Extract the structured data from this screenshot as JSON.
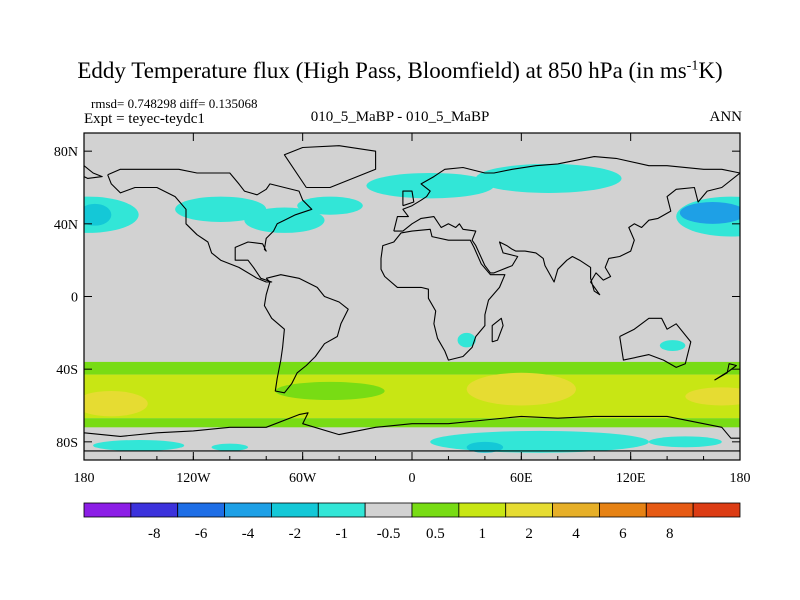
{
  "chart_data": {
    "type": "heatmap",
    "title": "Eddy Temperature flux (High Pass, Bloomfield) at 850 hPa (in ms",
    "title_superscript": "-1",
    "title_end": "K)",
    "stats": "rmsd= 0.748298 diff= 0.135068",
    "experiment": "Expt = teyec-teydc1",
    "case": "010_5_MaBP - 010_5_MaBP",
    "period": "ANN",
    "x_range": [
      -180,
      180
    ],
    "y_range": [
      -90,
      90
    ],
    "x_ticks": [
      {
        "value": -180,
        "label": "180"
      },
      {
        "value": -120,
        "label": "120W"
      },
      {
        "value": -60,
        "label": "60W"
      },
      {
        "value": 0,
        "label": "0"
      },
      {
        "value": 60,
        "label": "60E"
      },
      {
        "value": 120,
        "label": "120E"
      },
      {
        "value": 180,
        "label": "180"
      }
    ],
    "y_ticks": [
      {
        "value": 80,
        "label": "80N"
      },
      {
        "value": 40,
        "label": "40N"
      },
      {
        "value": 0,
        "label": "0"
      },
      {
        "value": -40,
        "label": "40S"
      },
      {
        "value": -80,
        "label": "80S"
      }
    ],
    "colorbar": {
      "colors": [
        "#8c1ee6",
        "#3c32dc",
        "#1e6ee6",
        "#1ea0e6",
        "#14c8d7",
        "#32e6d7",
        "#d2d2d2",
        "#78dc14",
        "#c8e614",
        "#e6dc32",
        "#e6af28",
        "#e68214",
        "#e65a14",
        "#dc3c14"
      ],
      "labels": [
        "-8",
        "-6",
        "-4",
        "-2",
        "-1",
        "-0.5",
        "0.5",
        "1",
        "2",
        "4",
        "6",
        "8"
      ]
    },
    "background_color": "#d2d2d2",
    "bands": [
      {
        "lon_start": -180,
        "lon_end": 180,
        "lat_start": -36,
        "lat_end": -43,
        "color": "#78dc14"
      },
      {
        "lon_start": -180,
        "lon_end": 180,
        "lat_start": -43,
        "lat_end": -67,
        "color": "#c8e614"
      },
      {
        "lon_start": -180,
        "lon_end": 180,
        "lat_start": -67,
        "lat_end": -72,
        "color": "#78dc14"
      }
    ],
    "blobs": [
      {
        "lon": -178,
        "lat": 45,
        "rlon": 28,
        "rlat": 10,
        "color": "#32e6d7"
      },
      {
        "lon": -174,
        "lat": 45,
        "rlon": 9,
        "rlat": 6,
        "color": "#14c8d7"
      },
      {
        "lon": -105,
        "lat": 48,
        "rlon": 25,
        "rlat": 7,
        "color": "#32e6d7"
      },
      {
        "lon": -70,
        "lat": 42,
        "rlon": 22,
        "rlat": 7,
        "color": "#32e6d7"
      },
      {
        "lon": -45,
        "lat": 50,
        "rlon": 18,
        "rlat": 5,
        "color": "#32e6d7"
      },
      {
        "lon": 10,
        "lat": 61,
        "rlon": 35,
        "rlat": 7,
        "color": "#32e6d7"
      },
      {
        "lon": 75,
        "lat": 65,
        "rlon": 40,
        "rlat": 8,
        "color": "#32e6d7"
      },
      {
        "lon": 175,
        "lat": 44,
        "rlon": 30,
        "rlat": 11,
        "color": "#32e6d7"
      },
      {
        "lon": 165,
        "lat": 46,
        "rlon": 18,
        "rlat": 6,
        "color": "#1ea0e6"
      },
      {
        "lon": 30,
        "lat": -24,
        "rlon": 5,
        "rlat": 4,
        "color": "#32e6d7"
      },
      {
        "lon": 143,
        "lat": -27,
        "rlon": 7,
        "rlat": 3,
        "color": "#32e6d7"
      },
      {
        "lon": -45,
        "lat": -52,
        "rlon": 30,
        "rlat": 5,
        "color": "#78dc14"
      },
      {
        "lon": -165,
        "lat": -59,
        "rlon": 20,
        "rlat": 7,
        "color": "#e6dc32"
      },
      {
        "lon": 60,
        "lat": -51,
        "rlon": 30,
        "rlat": 9,
        "color": "#e6dc32"
      },
      {
        "lon": 170,
        "lat": -55,
        "rlon": 20,
        "rlat": 5,
        "color": "#e6dc32"
      },
      {
        "lon": 70,
        "lat": -80,
        "rlon": 60,
        "rlat": 6,
        "color": "#32e6d7"
      },
      {
        "lon": 40,
        "lat": -83,
        "rlon": 10,
        "rlat": 3,
        "color": "#14c8d7"
      },
      {
        "lon": -150,
        "lat": -82,
        "rlon": 25,
        "rlat": 3,
        "color": "#32e6d7"
      },
      {
        "lon": -100,
        "lat": -83,
        "rlon": 10,
        "rlat": 2,
        "color": "#32e6d7"
      },
      {
        "lon": 150,
        "lat": -80,
        "rlon": 20,
        "rlat": 3,
        "color": "#32e6d7"
      }
    ],
    "coastlines": [
      [
        [
          -167,
          67
        ],
        [
          -160,
          70
        ],
        [
          -145,
          70
        ],
        [
          -128,
          70
        ],
        [
          -118,
          68
        ],
        [
          -100,
          68
        ],
        [
          -95,
          62
        ],
        [
          -92,
          58
        ],
        [
          -85,
          56
        ],
        [
          -80,
          59
        ],
        [
          -78,
          62
        ],
        [
          -70,
          60
        ],
        [
          -62,
          58
        ],
        [
          -60,
          53
        ],
        [
          -55,
          48
        ],
        [
          -64,
          45
        ],
        [
          -70,
          42
        ],
        [
          -74,
          40
        ],
        [
          -76,
          36
        ],
        [
          -80,
          32
        ],
        [
          -81,
          26
        ],
        [
          -80,
          25
        ],
        [
          -82,
          29
        ],
        [
          -90,
          30
        ],
        [
          -97,
          27
        ],
        [
          -97,
          20
        ],
        [
          -90,
          20
        ],
        [
          -87,
          16
        ],
        [
          -83,
          10
        ],
        [
          -77,
          8
        ],
        [
          -80,
          8
        ],
        [
          -85,
          10
        ],
        [
          -95,
          16
        ],
        [
          -105,
          20
        ],
        [
          -110,
          24
        ],
        [
          -112,
          30
        ],
        [
          -118,
          34
        ],
        [
          -124,
          40
        ],
        [
          -124,
          48
        ],
        [
          -130,
          55
        ],
        [
          -140,
          60
        ],
        [
          -152,
          60
        ],
        [
          -160,
          57
        ],
        [
          -165,
          62
        ],
        [
          -167,
          67
        ]
      ],
      [
        [
          -80,
          10
        ],
        [
          -72,
          12
        ],
        [
          -62,
          10
        ],
        [
          -52,
          5
        ],
        [
          -48,
          0
        ],
        [
          -40,
          -3
        ],
        [
          -35,
          -7
        ],
        [
          -39,
          -15
        ],
        [
          -41,
          -22
        ],
        [
          -48,
          -26
        ],
        [
          -53,
          -33
        ],
        [
          -58,
          -38
        ],
        [
          -63,
          -42
        ],
        [
          -66,
          -48
        ],
        [
          -70,
          -53
        ],
        [
          -75,
          -52
        ],
        [
          -74,
          -45
        ],
        [
          -72,
          -35
        ],
        [
          -71,
          -28
        ],
        [
          -70,
          -18
        ],
        [
          -77,
          -12
        ],
        [
          -81,
          -5
        ],
        [
          -80,
          1
        ],
        [
          -78,
          8
        ],
        [
          -80,
          10
        ]
      ],
      [
        [
          -10,
          36
        ],
        [
          -8,
          44
        ],
        [
          -2,
          44
        ],
        [
          -5,
          48
        ],
        [
          0,
          50
        ],
        [
          5,
          53
        ],
        [
          8,
          55
        ],
        [
          10,
          58
        ],
        [
          5,
          62
        ],
        [
          12,
          66
        ],
        [
          18,
          70
        ],
        [
          28,
          71
        ],
        [
          40,
          68
        ],
        [
          45,
          68
        ],
        [
          55,
          70
        ],
        [
          68,
          72
        ],
        [
          80,
          73
        ],
        [
          100,
          77
        ],
        [
          112,
          76
        ],
        [
          130,
          72
        ],
        [
          140,
          72
        ],
        [
          160,
          70
        ],
        [
          170,
          70
        ],
        [
          180,
          68
        ],
        [
          170,
          60
        ],
        [
          162,
          58
        ],
        [
          157,
          52
        ],
        [
          155,
          60
        ],
        [
          145,
          59
        ],
        [
          140,
          55
        ],
        [
          142,
          47
        ],
        [
          135,
          43
        ],
        [
          130,
          42
        ],
        [
          126,
          38
        ],
        [
          122,
          40
        ],
        [
          119,
          38
        ],
        [
          122,
          31
        ],
        [
          120,
          25
        ],
        [
          114,
          22
        ],
        [
          108,
          21
        ],
        [
          106,
          16
        ],
        [
          109,
          11
        ],
        [
          105,
          9
        ],
        [
          101,
          13
        ],
        [
          98,
          8
        ],
        [
          103,
          1
        ],
        [
          100,
          3
        ],
        [
          98,
          10
        ],
        [
          98,
          16
        ],
        [
          92,
          20
        ],
        [
          88,
          22
        ],
        [
          85,
          20
        ],
        [
          80,
          15
        ],
        [
          78,
          8
        ],
        [
          73,
          17
        ],
        [
          72,
          21
        ],
        [
          68,
          24
        ],
        [
          62,
          25
        ],
        [
          57,
          25
        ],
        [
          55,
          26
        ],
        [
          52,
          28
        ],
        [
          48,
          30
        ],
        [
          50,
          24
        ],
        [
          58,
          22
        ],
        [
          55,
          17
        ],
        [
          45,
          13
        ],
        [
          43,
          13
        ],
        [
          40,
          17
        ],
        [
          35,
          28
        ],
        [
          33,
          31
        ],
        [
          35,
          36
        ],
        [
          28,
          37
        ],
        [
          26,
          40
        ],
        [
          24,
          38
        ],
        [
          20,
          40
        ],
        [
          16,
          38
        ],
        [
          12,
          44
        ],
        [
          5,
          43
        ],
        [
          0,
          40
        ],
        [
          -5,
          36
        ],
        [
          -10,
          36
        ]
      ],
      [
        [
          -17,
          21
        ],
        [
          -16,
          28
        ],
        [
          -10,
          30
        ],
        [
          -6,
          35
        ],
        [
          0,
          36
        ],
        [
          10,
          37
        ],
        [
          11,
          33
        ],
        [
          20,
          31
        ],
        [
          32,
          31
        ],
        [
          34,
          27
        ],
        [
          38,
          18
        ],
        [
          43,
          12
        ],
        [
          51,
          12
        ],
        [
          48,
          5
        ],
        [
          42,
          -2
        ],
        [
          40,
          -10
        ],
        [
          40,
          -16
        ],
        [
          35,
          -22
        ],
        [
          33,
          -28
        ],
        [
          28,
          -33
        ],
        [
          20,
          -35
        ],
        [
          18,
          -30
        ],
        [
          14,
          -23
        ],
        [
          12,
          -15
        ],
        [
          13,
          -8
        ],
        [
          9,
          -1
        ],
        [
          9,
          4
        ],
        [
          5,
          5
        ],
        [
          -8,
          5
        ],
        [
          -15,
          11
        ],
        [
          -17,
          15
        ],
        [
          -17,
          21
        ]
      ],
      [
        [
          44,
          -25
        ],
        [
          47,
          -24
        ],
        [
          50,
          -16
        ],
        [
          49,
          -12
        ],
        [
          44,
          -16
        ],
        [
          44,
          -25
        ]
      ],
      [
        [
          114,
          -22
        ],
        [
          122,
          -18
        ],
        [
          130,
          -12
        ],
        [
          137,
          -12
        ],
        [
          140,
          -18
        ],
        [
          145,
          -15
        ],
        [
          153,
          -25
        ],
        [
          150,
          -37
        ],
        [
          145,
          -39
        ],
        [
          138,
          -35
        ],
        [
          130,
          -32
        ],
        [
          116,
          -35
        ],
        [
          114,
          -22
        ]
      ],
      [
        [
          -58,
          60
        ],
        [
          -45,
          60
        ],
        [
          -20,
          70
        ],
        [
          -20,
          80
        ],
        [
          -40,
          83
        ],
        [
          -60,
          82
        ],
        [
          -70,
          78
        ],
        [
          -58,
          60
        ]
      ],
      [
        [
          -180,
          -85
        ],
        [
          -180,
          -75
        ],
        [
          -160,
          -77
        ],
        [
          -140,
          -75
        ],
        [
          -120,
          -74
        ],
        [
          -100,
          -72
        ],
        [
          -80,
          -72
        ],
        [
          -62,
          -65
        ],
        [
          -57,
          -64
        ],
        [
          -60,
          -70
        ],
        [
          -40,
          -76
        ],
        [
          -20,
          -72
        ],
        [
          0,
          -70
        ],
        [
          20,
          -70
        ],
        [
          40,
          -68
        ],
        [
          60,
          -66
        ],
        [
          80,
          -67
        ],
        [
          100,
          -66
        ],
        [
          120,
          -66
        ],
        [
          140,
          -66
        ],
        [
          160,
          -70
        ],
        [
          170,
          -72
        ],
        [
          175,
          -78
        ],
        [
          180,
          -78
        ],
        [
          180,
          -85
        ],
        [
          -180,
          -85
        ]
      ],
      [
        [
          -5,
          50
        ],
        [
          1,
          52
        ],
        [
          0,
          58
        ],
        [
          -5,
          58
        ],
        [
          -5,
          50
        ]
      ],
      [
        [
          166,
          -46
        ],
        [
          174,
          -41
        ],
        [
          178,
          -38
        ],
        [
          174,
          -37
        ],
        [
          173,
          -42
        ],
        [
          166,
          -46
        ]
      ],
      [
        [
          -180,
          72
        ],
        [
          -175,
          68
        ],
        [
          -170,
          66
        ],
        [
          -178,
          65
        ],
        [
          -180,
          66
        ]
      ]
    ]
  }
}
